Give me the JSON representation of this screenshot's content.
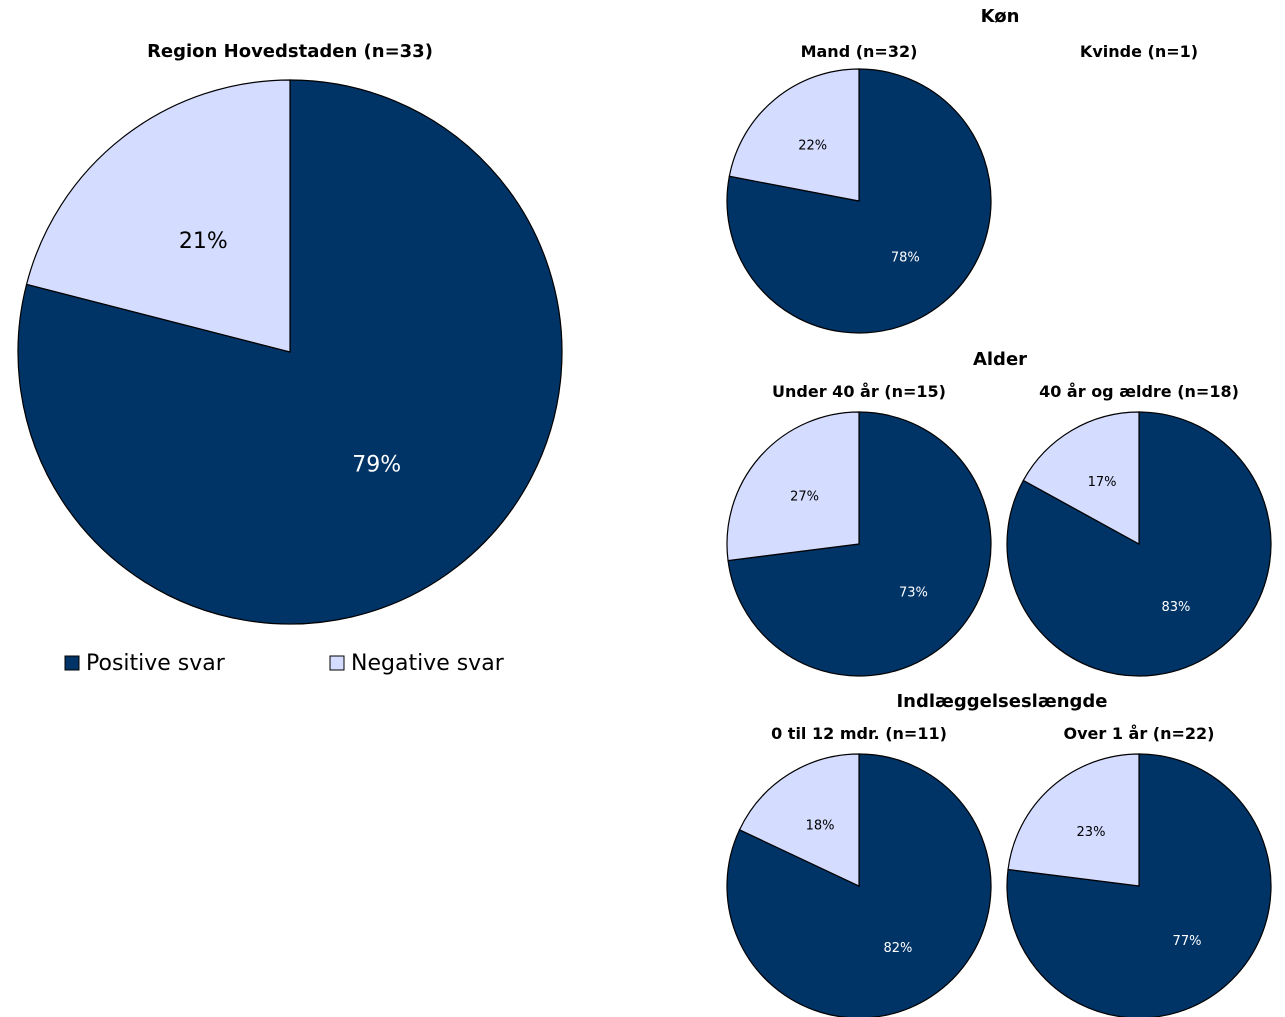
{
  "chart_data": [
    {
      "type": "pie",
      "title": "Region Hovedstaden (n=33)",
      "slices": [
        {
          "label": "Positive svar",
          "value": 79
        },
        {
          "label": "Negative svar",
          "value": 21
        }
      ]
    },
    {
      "type": "pie",
      "group": "Køn",
      "title": "Mand (n=32)",
      "slices": [
        {
          "label": "Positive svar",
          "value": 78
        },
        {
          "label": "Negative svar",
          "value": 22
        }
      ]
    },
    {
      "type": "pie",
      "group": "Køn",
      "title": "Kvinde (n=1)",
      "slices": []
    },
    {
      "type": "pie",
      "group": "Alder",
      "title": "Under 40 år (n=15)",
      "slices": [
        {
          "label": "Positive svar",
          "value": 73
        },
        {
          "label": "Negative svar",
          "value": 27
        }
      ]
    },
    {
      "type": "pie",
      "group": "Alder",
      "title": "40 år og ældre (n=18)",
      "slices": [
        {
          "label": "Positive svar",
          "value": 83
        },
        {
          "label": "Negative svar",
          "value": 17
        }
      ]
    },
    {
      "type": "pie",
      "group": "Indlæggelseslængde",
      "title": "0 til 12 mdr. (n=11)",
      "slices": [
        {
          "label": "Positive svar",
          "value": 82
        },
        {
          "label": "Negative svar",
          "value": 18
        }
      ]
    },
    {
      "type": "pie",
      "group": "Indlæggelseslængde",
      "title": "Over 1 år (n=22)",
      "slices": [
        {
          "label": "Positive svar",
          "value": 77
        },
        {
          "label": "Negative svar",
          "value": 23
        }
      ]
    }
  ],
  "groups": [
    "Køn",
    "Alder",
    "Indlæggelseslængde"
  ],
  "legend": [
    {
      "label": "Positive svar",
      "color": "#003366"
    },
    {
      "label": "Negative svar",
      "color": "#D4DCFF"
    }
  ],
  "colors": {
    "positive": "#003366",
    "negative": "#D4DCFF",
    "positive_label": "#ffffff",
    "negative_label": "#000000",
    "outline": "#000000"
  },
  "value_suffix": "%"
}
